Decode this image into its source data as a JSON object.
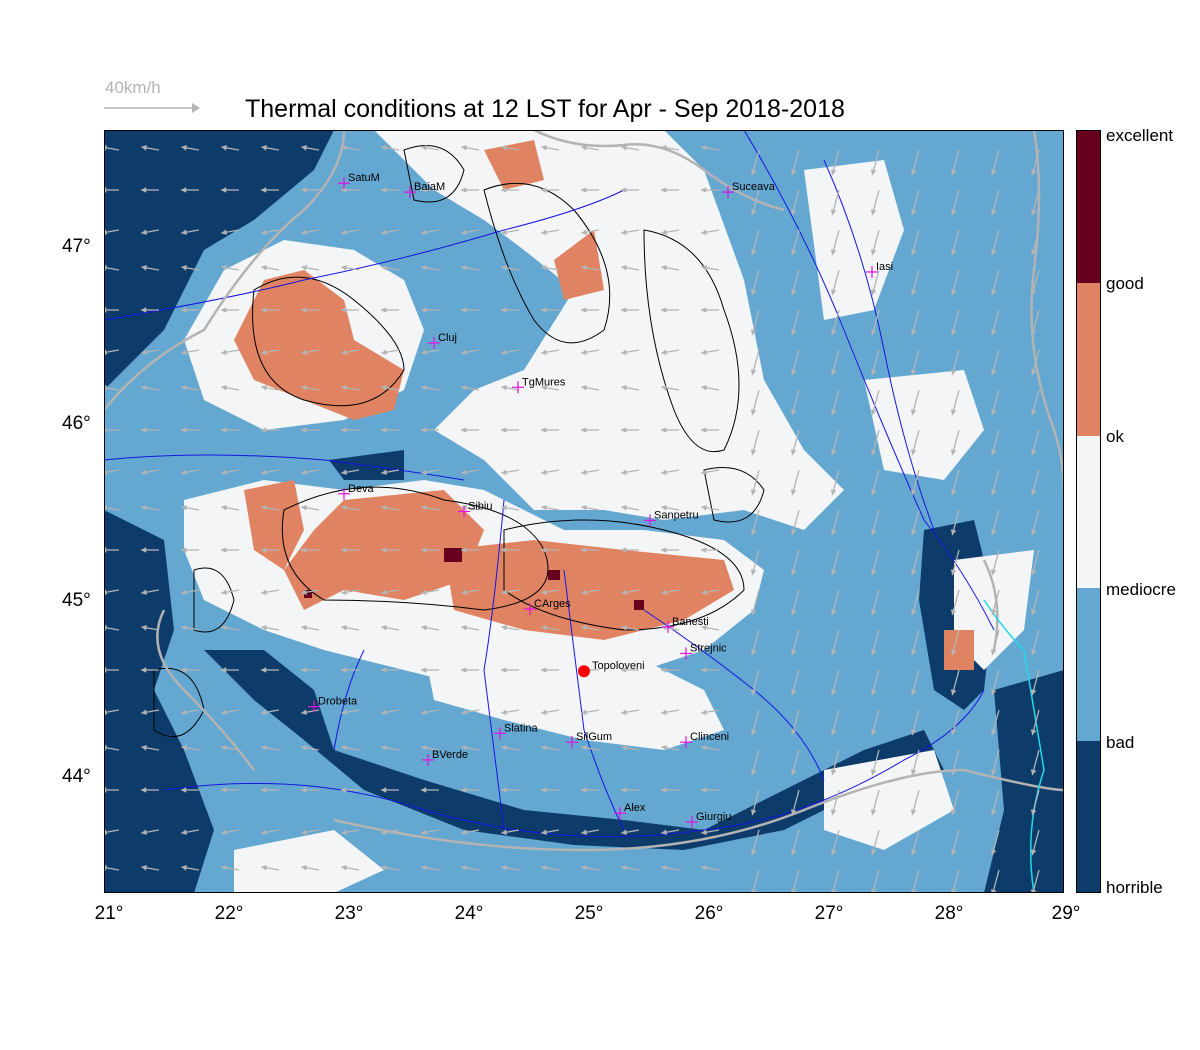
{
  "title": "Thermal conditions at 12 LST for Apr - Sep  2018-2018",
  "wind_scale_label": "40km/h",
  "x_axis_ticks": [
    "21°",
    "22°",
    "23°",
    "24°",
    "25°",
    "26°",
    "27°",
    "28°",
    "29°"
  ],
  "y_axis_ticks": [
    "47°",
    "46°",
    "45°",
    "44°"
  ],
  "colorbar": {
    "labels": [
      "excellent",
      "good",
      "ok",
      "mediocre",
      "bad",
      "horrible"
    ],
    "colors": {
      "excellent": "#67001f",
      "good": "#e08363",
      "ok": "#f4f5f7",
      "mediocre": "#f4f5f7",
      "bad": "#64a8d2",
      "horrible": "#0d3c6b"
    }
  },
  "colors": {
    "river": "#1515e0",
    "border": "#b3b3b3",
    "contour": "#000000",
    "city_marker": "#e010e0",
    "highlight_marker": "#ff0000",
    "coast": "#22d8e8"
  },
  "cities": [
    {
      "name": "SatuM",
      "lon": 23.0,
      "lat": 47.45
    },
    {
      "name": "BaiaM",
      "lon": 23.55,
      "lat": 47.4
    },
    {
      "name": "Suceava",
      "lon": 26.2,
      "lat": 47.4
    },
    {
      "name": "Iasi",
      "lon": 27.4,
      "lat": 46.95
    },
    {
      "name": "Cluj",
      "lon": 23.75,
      "lat": 46.55
    },
    {
      "name": "TgMures",
      "lon": 24.45,
      "lat": 46.3
    },
    {
      "name": "Deva",
      "lon": 23.0,
      "lat": 45.7
    },
    {
      "name": "Sibiu",
      "lon": 24.0,
      "lat": 45.6
    },
    {
      "name": "Sanpetru",
      "lon": 25.55,
      "lat": 45.55
    },
    {
      "name": "CArges",
      "lon": 24.55,
      "lat": 45.05
    },
    {
      "name": "Banesti",
      "lon": 25.7,
      "lat": 44.95
    },
    {
      "name": "Strejnic",
      "lon": 25.85,
      "lat": 44.8
    },
    {
      "name": "Drobeta",
      "lon": 22.75,
      "lat": 44.5
    },
    {
      "name": "Slatina",
      "lon": 24.3,
      "lat": 44.35
    },
    {
      "name": "SilGum",
      "lon": 24.9,
      "lat": 44.3
    },
    {
      "name": "Clinceni",
      "lon": 25.85,
      "lat": 44.3
    },
    {
      "name": "BVerde",
      "lon": 23.7,
      "lat": 44.2
    },
    {
      "name": "Alex",
      "lon": 25.3,
      "lat": 43.9
    },
    {
      "name": "Giurgiu",
      "lon": 25.9,
      "lat": 43.85
    }
  ],
  "highlight_city": {
    "name": "Topoloveni",
    "lon": 25.0,
    "lat": 44.7
  }
}
